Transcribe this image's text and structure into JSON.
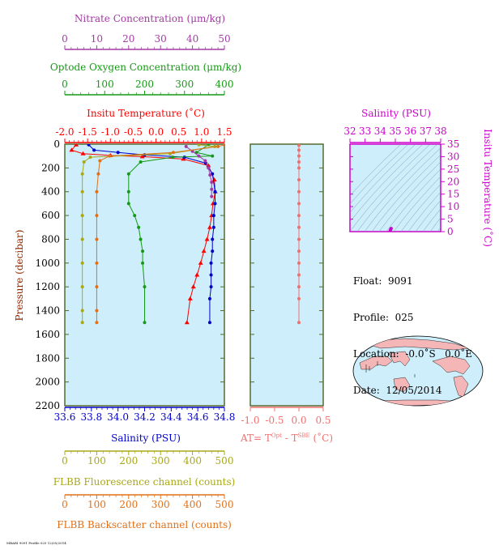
{
  "axes": {
    "nitrate": {
      "label": "Nitrate Concentration (μm/kg)",
      "ticks": [
        0,
        10,
        20,
        30,
        40,
        50
      ],
      "range": [
        0,
        50
      ],
      "color": "#a33aa3"
    },
    "oxygen": {
      "label": "Optode Oxygen Concentration (μm/kg)",
      "ticks": [
        0,
        100,
        200,
        300,
        400
      ],
      "range": [
        0,
        400
      ],
      "color": "#159a15"
    },
    "temperature": {
      "label": "Insitu Temperature (˚C)",
      "ticks": [
        "-2.0",
        "-1.5",
        "-1.0",
        "-0.5",
        "0.0",
        "0.5",
        "1.0",
        "1.5"
      ],
      "range": [
        -2.0,
        1.5
      ],
      "color": "#ff0000"
    },
    "pressure": {
      "label": "Pressure (decibar)",
      "ticks": [
        0,
        200,
        400,
        600,
        800,
        1000,
        1200,
        1400,
        1600,
        1800,
        2000,
        2200
      ],
      "range": [
        0,
        2200
      ],
      "color": "#8b2500"
    },
    "salinity": {
      "label": "Salinity (PSU)",
      "ticks": [
        "33.6",
        "33.8",
        "34.0",
        "34.2",
        "34.4",
        "34.6",
        "34.8"
      ],
      "range": [
        33.6,
        34.8
      ],
      "color": "#0000cc"
    },
    "fluorescence": {
      "label": "FLBB Fluorescence channel (counts)",
      "ticks": [
        0,
        100,
        200,
        300,
        400,
        500
      ],
      "range": [
        0,
        500
      ],
      "color": "#a8a818"
    },
    "backscatter": {
      "label": "FLBB Backscatter channel (counts)",
      "ticks": [
        0,
        100,
        200,
        300,
        400,
        500
      ],
      "range": [
        0,
        500
      ],
      "color": "#e0701a"
    },
    "at": {
      "label_prefix": "AT= T",
      "sup1": "Opt",
      "label_mid": " - T",
      "sup2": "SBE",
      "label_suffix": " (˚C)",
      "ticks": [
        "-1.0",
        "-0.5",
        "0.0",
        "0.5"
      ],
      "range": [
        -1.0,
        0.5
      ],
      "color": "#f07070"
    },
    "ts_salinity": {
      "label": "Salinity (PSU)",
      "ticks": [
        32,
        33,
        34,
        35,
        36,
        37,
        38
      ],
      "range": [
        32,
        38
      ],
      "color": "#cc00cc"
    },
    "ts_temperature": {
      "label": "Insitu Temperature (˚C)",
      "ticks": [
        0,
        5,
        10,
        15,
        20,
        25,
        30,
        35
      ],
      "range": [
        0,
        35
      ],
      "color": "#cc00cc"
    }
  },
  "info": {
    "float": "Float:  9091",
    "profile": "Profile:  025",
    "location": "Location:  -0.0˚S   0.0˚E",
    "date": "Date:  12/05/2014"
  },
  "footer": "MBARI 9091 Profile 025 12/05/2014",
  "colors": {
    "panel_bg": "#cdeefa",
    "frame": "#556b2f"
  },
  "chart_data": {
    "type": "line",
    "y_variable": "pressure",
    "series": [
      {
        "variable": "temperature",
        "color": "#ff0000",
        "marker": "triangle",
        "x": [
          -1.75,
          -1.85,
          -1.6,
          -1.0,
          -0.3,
          0.6,
          1.15,
          1.28,
          1.3,
          1.25,
          1.22,
          1.18,
          1.12,
          1.05,
          0.98,
          0.9,
          0.82,
          0.75,
          0.68
        ],
        "y": [
          5,
          50,
          80,
          95,
          105,
          125,
          180,
          300,
          400,
          500,
          600,
          700,
          800,
          900,
          1000,
          1100,
          1200,
          1300,
          1500
        ]
      },
      {
        "variable": "salinity",
        "color": "#0000cc",
        "marker": "circle",
        "x": [
          33.78,
          33.82,
          34.0,
          34.2,
          34.5,
          34.66,
          34.71,
          34.73,
          34.73,
          34.72,
          34.72,
          34.71,
          34.71,
          34.7,
          34.7,
          34.7,
          34.69,
          34.69
        ],
        "y": [
          5,
          50,
          70,
          90,
          110,
          160,
          250,
          400,
          500,
          600,
          700,
          800,
          900,
          1000,
          1100,
          1200,
          1300,
          1500
        ]
      },
      {
        "variable": "oxygen",
        "color": "#159a15",
        "marker": "circle",
        "x": [
          360,
          330,
          370,
          270,
          190,
          160,
          160,
          160,
          175,
          185,
          190,
          195,
          195,
          200,
          200
        ],
        "y": [
          5,
          70,
          100,
          110,
          150,
          250,
          400,
          500,
          600,
          700,
          800,
          900,
          1000,
          1200,
          1500
        ]
      },
      {
        "variable": "nitrate",
        "color": "#a33aa3",
        "marker": "circle",
        "x": [
          38,
          40,
          42,
          44,
          45,
          45.5,
          46,
          46,
          46
        ],
        "y": [
          20,
          60,
          100,
          140,
          200,
          260,
          320,
          380,
          440
        ]
      },
      {
        "variable": "fluorescence",
        "color": "#a8a818",
        "marker": "circle",
        "x": [
          420,
          470,
          330,
          80,
          60,
          55,
          55,
          55,
          55,
          55,
          55,
          55,
          55
        ],
        "y": [
          5,
          20,
          80,
          110,
          150,
          250,
          400,
          600,
          800,
          1000,
          1200,
          1400,
          1500
        ]
      },
      {
        "variable": "backscatter",
        "color": "#e0701a",
        "marker": "circle",
        "x": [
          500,
          480,
          340,
          140,
          110,
          105,
          100,
          100,
          100,
          100,
          100,
          100,
          100
        ],
        "y": [
          5,
          20,
          70,
          100,
          140,
          250,
          400,
          600,
          800,
          1000,
          1200,
          1400,
          1500
        ]
      },
      {
        "variable": "at",
        "color": "#f07070",
        "marker": "circle",
        "x": [
          0.0,
          0.0,
          0.0,
          0.0,
          0.0,
          0.0,
          0.0,
          0.0,
          0.0,
          0.0,
          0.0,
          0.0,
          0.0,
          0.0,
          0.0,
          0.0,
          0.0
        ],
        "y": [
          10,
          50,
          100,
          150,
          200,
          300,
          400,
          500,
          600,
          700,
          800,
          900,
          1000,
          1100,
          1200,
          1300,
          1500
        ]
      }
    ]
  }
}
